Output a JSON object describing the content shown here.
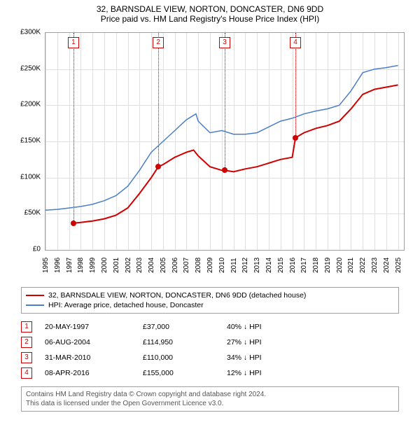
{
  "title_line1": "32, BARNSDALE VIEW, NORTON, DONCASTER, DN6 9DD",
  "title_line2": "Price paid vs. HM Land Registry's House Price Index (HPI)",
  "chart": {
    "type": "line",
    "background_color": "#ffffff",
    "grid_color": "#e0e0e0",
    "axis_color": "#a0a0a0",
    "label_fontsize": 10,
    "title_fontsize": 12,
    "x_years": [
      1995,
      1996,
      1997,
      1998,
      1999,
      2000,
      2001,
      2002,
      2003,
      2004,
      2005,
      2006,
      2007,
      2008,
      2009,
      2010,
      2011,
      2012,
      2013,
      2014,
      2015,
      2016,
      2017,
      2018,
      2019,
      2020,
      2021,
      2022,
      2023,
      2024,
      2025
    ],
    "x_min": 1995,
    "x_max": 2025.5,
    "y_ticks": [
      0,
      50000,
      100000,
      150000,
      200000,
      250000,
      300000
    ],
    "y_tick_labels": [
      "£0",
      "£50K",
      "£100K",
      "£150K",
      "£200K",
      "£250K",
      "£300K"
    ],
    "y_min": 0,
    "y_max": 300000,
    "series": [
      {
        "key": "price_paid",
        "color": "#d00000",
        "width": 2,
        "points": [
          [
            1997.38,
            37000
          ],
          [
            1998,
            38000
          ],
          [
            1999,
            40000
          ],
          [
            2000,
            43000
          ],
          [
            2001,
            48000
          ],
          [
            2002,
            58000
          ],
          [
            2003,
            78000
          ],
          [
            2004,
            100000
          ],
          [
            2004.6,
            114950
          ],
          [
            2005,
            118000
          ],
          [
            2006,
            128000
          ],
          [
            2007,
            135000
          ],
          [
            2007.6,
            138000
          ],
          [
            2008,
            130000
          ],
          [
            2009,
            115000
          ],
          [
            2010,
            110000
          ],
          [
            2010.25,
            110000
          ],
          [
            2011,
            108000
          ],
          [
            2012,
            112000
          ],
          [
            2013,
            115000
          ],
          [
            2014,
            120000
          ],
          [
            2015,
            125000
          ],
          [
            2016,
            128000
          ],
          [
            2016.27,
            155000
          ],
          [
            2017,
            162000
          ],
          [
            2018,
            168000
          ],
          [
            2019,
            172000
          ],
          [
            2020,
            178000
          ],
          [
            2021,
            195000
          ],
          [
            2022,
            215000
          ],
          [
            2023,
            222000
          ],
          [
            2024,
            225000
          ],
          [
            2025,
            228000
          ]
        ]
      },
      {
        "key": "hpi",
        "color": "#4a7ec8",
        "width": 1.5,
        "points": [
          [
            1995,
            55000
          ],
          [
            1996,
            56000
          ],
          [
            1997,
            58000
          ],
          [
            1998,
            60000
          ],
          [
            1999,
            63000
          ],
          [
            2000,
            68000
          ],
          [
            2001,
            75000
          ],
          [
            2002,
            88000
          ],
          [
            2003,
            110000
          ],
          [
            2004,
            135000
          ],
          [
            2005,
            150000
          ],
          [
            2006,
            165000
          ],
          [
            2007,
            180000
          ],
          [
            2007.8,
            188000
          ],
          [
            2008,
            178000
          ],
          [
            2009,
            162000
          ],
          [
            2010,
            165000
          ],
          [
            2011,
            160000
          ],
          [
            2012,
            160000
          ],
          [
            2013,
            162000
          ],
          [
            2014,
            170000
          ],
          [
            2015,
            178000
          ],
          [
            2016,
            182000
          ],
          [
            2017,
            188000
          ],
          [
            2018,
            192000
          ],
          [
            2019,
            195000
          ],
          [
            2020,
            200000
          ],
          [
            2021,
            220000
          ],
          [
            2022,
            245000
          ],
          [
            2023,
            250000
          ],
          [
            2024,
            252000
          ],
          [
            2025,
            255000
          ]
        ]
      }
    ],
    "markers": [
      {
        "n": "1",
        "year": 1997.38,
        "price": 37000
      },
      {
        "n": "2",
        "year": 2004.6,
        "price": 114950
      },
      {
        "n": "3",
        "year": 2010.25,
        "price": 110000
      },
      {
        "n": "4",
        "year": 2016.27,
        "price": 155000
      }
    ]
  },
  "legend": {
    "row1": {
      "color": "#d00000",
      "label": "32, BARNSDALE VIEW, NORTON, DONCASTER, DN6 9DD (detached house)"
    },
    "row2": {
      "color": "#4a7ec8",
      "label": "HPI: Average price, detached house, Doncaster"
    }
  },
  "sales": [
    {
      "n": "1",
      "date": "20-MAY-1997",
      "price": "£37,000",
      "hpi": "40% ↓ HPI"
    },
    {
      "n": "2",
      "date": "06-AUG-2004",
      "price": "£114,950",
      "hpi": "27% ↓ HPI"
    },
    {
      "n": "3",
      "date": "31-MAR-2010",
      "price": "£110,000",
      "hpi": "34% ↓ HPI"
    },
    {
      "n": "4",
      "date": "08-APR-2016",
      "price": "£155,000",
      "hpi": "12% ↓ HPI"
    }
  ],
  "footer": {
    "line1": "Contains HM Land Registry data © Crown copyright and database right 2024.",
    "line2": "This data is licensed under the Open Government Licence v3.0."
  },
  "marker_border_color": "#d00000"
}
